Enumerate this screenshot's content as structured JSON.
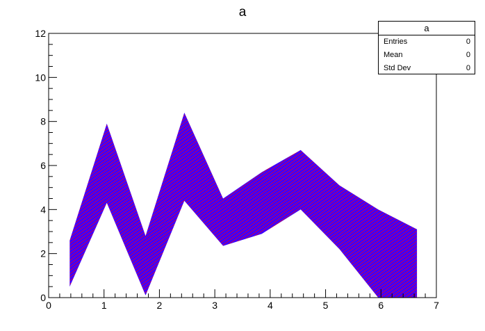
{
  "chart_data": {
    "type": "area",
    "title": "a",
    "xlabel": "",
    "ylabel": "",
    "xlim": [
      0,
      7
    ],
    "ylim": [
      0,
      12
    ],
    "x_ticks": [
      "0",
      "1",
      "2",
      "3",
      "4",
      "5",
      "6",
      "7"
    ],
    "y_ticks": [
      "0",
      "2",
      "4",
      "6",
      "8",
      "10",
      "12"
    ],
    "grid": false,
    "fill": "hatched",
    "colors": {
      "fill_primary": "#3f00ff",
      "fill_secondary": "#ff0000"
    },
    "x": [
      0.38,
      1.05,
      1.75,
      2.45,
      3.15,
      3.85,
      4.55,
      5.25,
      5.95,
      6.65
    ],
    "series": [
      {
        "values": [
          0.5,
          4.3,
          0.1,
          4.4,
          2.35,
          2.9,
          4.0,
          2.2,
          0.0,
          0.0
        ]
      },
      {
        "values": [
          2.6,
          7.9,
          2.8,
          8.4,
          4.5,
          5.7,
          6.7,
          5.1,
          4.0,
          3.1
        ]
      }
    ]
  },
  "stats": {
    "title": "a",
    "rows": [
      {
        "label": "Entries",
        "value": "0"
      },
      {
        "label": "Mean",
        "value": "0"
      },
      {
        "label": "Std Dev",
        "value": "0"
      }
    ]
  }
}
